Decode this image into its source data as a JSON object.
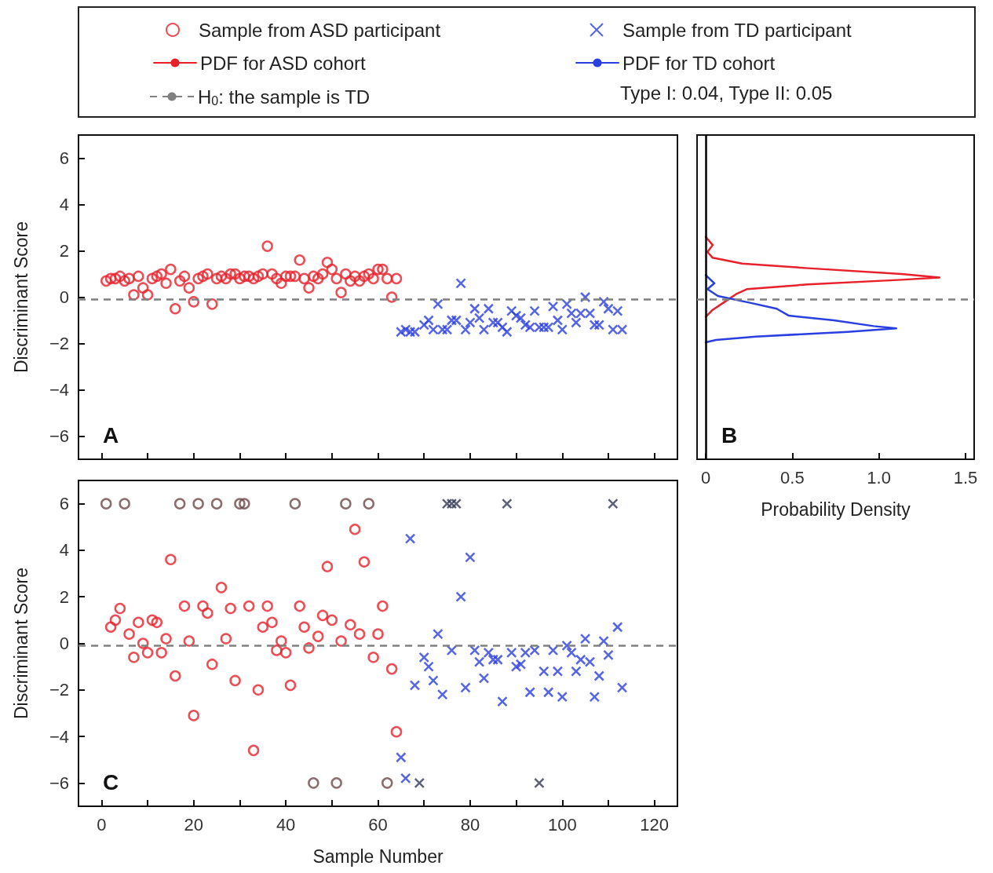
{
  "chart_data": [
    {
      "type": "scatter",
      "title": "A",
      "ylabel": "Discriminant Score",
      "xlim": [
        -5,
        125
      ],
      "ylim": [
        -7,
        7
      ],
      "xticks": [
        0,
        {
          "value": 10,
          "label": null
        },
        20,
        {
          "value": 30,
          "label": null
        },
        40,
        {
          "value": 50,
          "label": null
        },
        60,
        {
          "value": 70,
          "label": null
        },
        80,
        {
          "value": 90,
          "label": null
        },
        100,
        {
          "value": 110,
          "label": null
        },
        120
      ],
      "yticks": [
        {
          "value": -6,
          "label": "−6"
        },
        {
          "value": -4,
          "label": "−4"
        },
        {
          "value": -2,
          "label": "−2"
        },
        0,
        2,
        4,
        6
      ],
      "tick_labels": "y",
      "grid": false,
      "legend": "top",
      "series": [
        {
          "name": "Sample from ASD participant",
          "color": "#e8202a",
          "marker": "circle",
          "x": [
            1,
            2,
            3,
            4,
            5,
            6,
            7,
            8,
            9,
            10,
            11,
            12,
            13,
            14,
            15,
            16,
            17,
            18,
            19,
            20,
            21,
            22,
            23,
            24,
            25,
            26,
            27,
            28,
            29,
            30,
            31,
            32,
            33,
            34,
            35,
            36,
            37,
            38,
            39,
            40,
            41,
            42,
            43,
            44,
            45,
            46,
            47,
            48,
            49,
            50,
            51,
            52,
            53,
            54,
            55,
            56,
            57,
            58,
            59,
            60,
            61,
            62,
            63,
            64
          ],
          "values": [
            0.7,
            0.8,
            0.8,
            0.9,
            0.7,
            0.8,
            0.1,
            0.9,
            0.4,
            0.1,
            0.8,
            0.9,
            1.0,
            0.6,
            1.2,
            -0.5,
            0.7,
            0.9,
            0.4,
            -0.2,
            0.8,
            0.9,
            1.0,
            -0.3,
            0.8,
            0.9,
            0.8,
            1.0,
            1.0,
            0.8,
            0.9,
            0.9,
            0.8,
            0.9,
            1.0,
            2.2,
            1.0,
            0.8,
            0.6,
            0.9,
            0.9,
            0.9,
            1.6,
            0.8,
            0.4,
            0.9,
            0.8,
            1.0,
            1.5,
            1.2,
            0.8,
            0.2,
            1.0,
            0.7,
            0.9,
            0.7,
            0.9,
            1.0,
            0.8,
            1.2,
            1.2,
            0.8,
            0.0,
            0.8
          ]
        },
        {
          "name": "Sample from TD participant",
          "color": "#2a3fe0",
          "marker": "cross",
          "x": [
            65,
            66,
            67,
            68,
            70,
            71,
            72,
            73,
            74,
            75,
            76,
            77,
            78,
            79,
            80,
            81,
            82,
            83,
            84,
            85,
            86,
            87,
            88,
            89,
            90,
            91,
            92,
            93,
            94,
            95,
            96,
            97,
            98,
            99,
            100,
            101,
            102,
            103,
            104,
            105,
            106,
            107,
            108,
            109,
            110,
            111,
            112,
            113
          ],
          "values": [
            -1.5,
            -1.4,
            -1.5,
            -1.5,
            -1.2,
            -1.0,
            -1.4,
            -0.3,
            -1.4,
            -1.4,
            -1.0,
            -1.0,
            0.6,
            -1.4,
            -1.1,
            -0.5,
            -0.9,
            -1.4,
            -0.5,
            -1.1,
            -1.1,
            -1.3,
            -1.5,
            -0.6,
            -0.8,
            -0.9,
            -1.2,
            -1.3,
            -0.6,
            -1.3,
            -1.3,
            -1.3,
            -0.4,
            -1.0,
            -1.4,
            -0.3,
            -0.7,
            -1.1,
            -0.7,
            0.0,
            -0.7,
            -1.2,
            -1.2,
            -0.2,
            -0.5,
            -1.4,
            -0.6,
            -1.4
          ]
        }
      ],
      "ref_lines": [
        {
          "axis": "y",
          "value": -0.1,
          "label": "H$_{0}$: the sample is TD",
          "color": "#808080",
          "line_style": "dashed"
        }
      ],
      "annotations": [
        "Type I: 0.04, Type II: 0.05"
      ]
    },
    {
      "type": "line",
      "title": "B",
      "xlabel": "Probability Density",
      "xlim": [
        -0.05,
        1.55
      ],
      "ylim": [
        -7,
        7
      ],
      "xticks": [
        0,
        0.5,
        {
          "value": 1,
          "label": "1.0"
        },
        1.5
      ],
      "tick_labels": "x",
      "grid": false,
      "legend": "top",
      "marker": "none",
      "line_style": "solid",
      "series": [
        {
          "name": "PDF for ASD cohort",
          "color": "#e8202a",
          "x": [
            0,
            0.04,
            0.01,
            0.04,
            0.21,
            0.59,
            1.13,
            1.35,
            1.13,
            0.59,
            0.24,
            0.18,
            0.1,
            0.04,
            0
          ],
          "values": [
            2.6,
            2.25,
            1.95,
            1.7,
            1.45,
            1.25,
            1.0,
            0.85,
            0.75,
            0.55,
            0.35,
            0.15,
            -0.25,
            -0.55,
            -0.85
          ]
        },
        {
          "name": "PDF for TD cohort",
          "color": "#2a3fe0",
          "x": [
            0,
            0.05,
            0.01,
            0.07,
            0.26,
            0.41,
            0.48,
            0.74,
            0.97,
            1.1,
            0.82,
            0.29,
            0.06,
            0
          ],
          "values": [
            0.95,
            0.6,
            0.35,
            0.05,
            -0.25,
            -0.5,
            -0.8,
            -1.0,
            -1.25,
            -1.35,
            -1.5,
            -1.7,
            -1.85,
            -1.95
          ]
        }
      ],
      "ref_lines": [
        {
          "axis": "y",
          "value": -0.1,
          "color": "#808080",
          "line_style": "dashed"
        },
        {
          "axis": "x",
          "value": 0,
          "color": "#000000",
          "line_style": "solid"
        }
      ]
    },
    {
      "type": "scatter",
      "title": "C",
      "xlabel": "Sample Number",
      "ylabel": "Discriminant Score",
      "xlim": [
        -5,
        125
      ],
      "ylim": [
        -7,
        7
      ],
      "xticks": [
        0,
        {
          "value": 10,
          "label": null
        },
        20,
        {
          "value": 30,
          "label": null
        },
        40,
        {
          "value": 50,
          "label": null
        },
        60,
        {
          "value": 70,
          "label": null
        },
        80,
        {
          "value": 90,
          "label": null
        },
        100,
        {
          "value": 110,
          "label": null
        },
        120
      ],
      "yticks": [
        {
          "value": -6,
          "label": "−6"
        },
        {
          "value": -4,
          "label": "−4"
        },
        {
          "value": -2,
          "label": "−2"
        },
        0,
        2,
        4,
        6
      ],
      "grid": false,
      "series": [
        {
          "color": "#e8202a",
          "marker": "circle",
          "x": [
            2,
            3,
            4,
            6,
            7,
            8,
            9,
            10,
            11,
            12,
            13,
            14,
            15,
            16,
            18,
            19,
            20,
            22,
            23,
            24,
            26,
            27,
            28,
            29,
            32,
            33,
            34,
            35,
            36,
            37,
            38,
            39,
            40,
            41,
            43,
            44,
            45,
            47,
            48,
            49,
            50,
            52,
            54,
            55,
            56,
            57,
            59,
            60,
            61,
            63,
            64
          ],
          "values": [
            0.7,
            1.0,
            1.5,
            0.4,
            -0.6,
            0.9,
            0.0,
            -0.4,
            1.0,
            0.9,
            -0.4,
            0.2,
            3.6,
            -1.4,
            1.6,
            0.1,
            -3.1,
            1.6,
            1.3,
            -0.9,
            2.4,
            0.2,
            1.5,
            -1.6,
            1.6,
            -4.6,
            -2.0,
            0.7,
            1.6,
            0.9,
            -0.3,
            0.1,
            -0.4,
            -1.8,
            1.6,
            0.7,
            -0.2,
            0.3,
            1.2,
            3.3,
            1.0,
            0.1,
            0.8,
            4.9,
            0.4,
            3.5,
            -0.6,
            0.4,
            1.6,
            -1.1,
            -3.8
          ]
        },
        {
          "color": "#6e4848",
          "marker": "circle",
          "x": [
            1,
            5,
            17,
            21,
            25,
            30,
            31,
            42,
            53,
            58,
            46,
            51,
            62
          ],
          "values": [
            6,
            6,
            6,
            6,
            6,
            6,
            6,
            6,
            6,
            6,
            -6,
            -6,
            -6
          ]
        },
        {
          "color": "#2a3fe0",
          "marker": "cross",
          "x": [
            65,
            66,
            67,
            68,
            70,
            71,
            72,
            73,
            74,
            76,
            78,
            79,
            80,
            81,
            82,
            83,
            84,
            85,
            86,
            87,
            89,
            90,
            91,
            92,
            93,
            94,
            96,
            97,
            98,
            99,
            100,
            101,
            102,
            103,
            104,
            105,
            106,
            107,
            108,
            109,
            110,
            112,
            113
          ],
          "values": [
            -4.9,
            -5.8,
            4.5,
            -1.8,
            -0.6,
            -1.0,
            -1.6,
            0.4,
            -2.2,
            -0.3,
            2.0,
            -1.9,
            3.7,
            -0.3,
            -0.8,
            -1.5,
            -0.4,
            -0.7,
            -0.7,
            -2.5,
            -0.4,
            -1.0,
            -0.9,
            -0.4,
            -2.1,
            -0.3,
            -1.2,
            -2.1,
            -0.3,
            -1.2,
            -2.3,
            -0.1,
            -0.4,
            -1.2,
            -0.7,
            0.2,
            -0.8,
            -2.3,
            -1.4,
            0.1,
            -0.5,
            0.7,
            -1.9
          ]
        },
        {
          "color": "#333a58",
          "marker": "cross",
          "x": [
            75,
            76,
            77,
            88,
            111,
            69,
            95
          ],
          "values": [
            6,
            6,
            6,
            6,
            6,
            -6,
            -6
          ]
        }
      ],
      "ref_lines": [
        {
          "axis": "y",
          "value": -0.1,
          "color": "#808080",
          "line_style": "dashed"
        }
      ]
    }
  ]
}
